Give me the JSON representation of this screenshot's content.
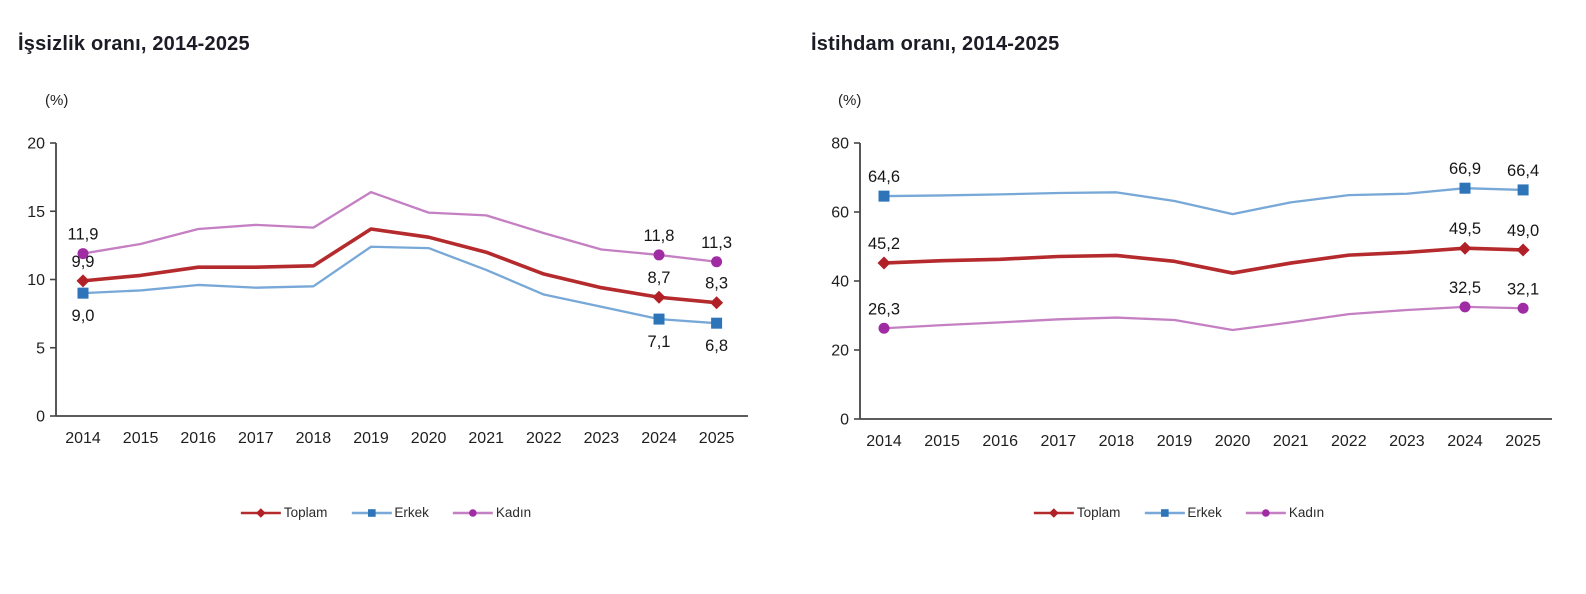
{
  "page": {
    "background": "#ffffff"
  },
  "chart_data": [
    {
      "type": "line",
      "title": "İşsizlik oranı, 2014-2025",
      "unit_label": "(%)",
      "x_labels": [
        "2014",
        "2015",
        "2016",
        "2017",
        "2018",
        "2019",
        "2020",
        "2021",
        "2022",
        "2023",
        "2024",
        "2025"
      ],
      "ylim": [
        0,
        20
      ],
      "yticks": [
        0,
        5,
        10,
        15,
        20
      ],
      "grid": false,
      "legend_position": "bottom-center",
      "axis_color": "#454545",
      "series": [
        {
          "name": "Toplam",
          "line_color": "#b52a2d",
          "marker_color": "#b02026",
          "marker": "diamond",
          "line_width": 3.6,
          "values": [
            9.9,
            10.3,
            10.9,
            10.9,
            11.0,
            13.7,
            13.1,
            12.0,
            10.4,
            9.4,
            8.7,
            8.3
          ],
          "point_labels": [
            {
              "index": 0,
              "text": "9,9",
              "position": "above"
            },
            {
              "index": 10,
              "text": "8,7",
              "position": "above"
            },
            {
              "index": 11,
              "text": "8,3",
              "position": "above"
            }
          ]
        },
        {
          "name": "Erkek",
          "line_color": "#77a8d7",
          "marker_color": "#2e74b8",
          "marker": "square",
          "line_width": 2.3,
          "values": [
            9.0,
            9.2,
            9.6,
            9.4,
            9.5,
            12.4,
            12.3,
            10.7,
            8.9,
            8.0,
            7.1,
            6.8
          ],
          "point_labels": [
            {
              "index": 0,
              "text": "9,0",
              "position": "below"
            },
            {
              "index": 10,
              "text": "7,1",
              "position": "below"
            },
            {
              "index": 11,
              "text": "6,8",
              "position": "below"
            }
          ]
        },
        {
          "name": "Kadın",
          "line_color": "#c57fc3",
          "marker_color": "#a02ca4",
          "marker": "circle",
          "line_width": 2.3,
          "values": [
            11.9,
            12.6,
            13.7,
            14.0,
            13.8,
            16.4,
            14.9,
            14.7,
            13.4,
            12.2,
            11.8,
            11.3
          ],
          "point_labels": [
            {
              "index": 0,
              "text": "11,9",
              "position": "above"
            },
            {
              "index": 10,
              "text": "11,8",
              "position": "above"
            },
            {
              "index": 11,
              "text": "11,3",
              "position": "above"
            }
          ]
        }
      ]
    },
    {
      "type": "line",
      "title": "İstihdam oranı, 2014-2025",
      "unit_label": "(%)",
      "x_labels": [
        "2014",
        "2015",
        "2016",
        "2017",
        "2018",
        "2019",
        "2020",
        "2021",
        "2022",
        "2023",
        "2024",
        "2025"
      ],
      "ylim": [
        0,
        80
      ],
      "yticks": [
        0,
        20,
        40,
        60,
        80
      ],
      "grid": false,
      "legend_position": "bottom-center",
      "axis_color": "#454545",
      "series": [
        {
          "name": "Toplam",
          "line_color": "#b52a2d",
          "marker_color": "#b02026",
          "marker": "diamond",
          "line_width": 3.6,
          "values": [
            45.2,
            45.9,
            46.3,
            47.1,
            47.4,
            45.7,
            42.3,
            45.2,
            47.5,
            48.3,
            49.5,
            49.0
          ],
          "point_labels": [
            {
              "index": 0,
              "text": "45,2",
              "position": "above"
            },
            {
              "index": 10,
              "text": "49,5",
              "position": "above"
            },
            {
              "index": 11,
              "text": "49,0",
              "position": "above"
            }
          ]
        },
        {
          "name": "Erkek",
          "line_color": "#77a8d7",
          "marker_color": "#2e74b8",
          "marker": "square",
          "line_width": 2.3,
          "values": [
            64.6,
            64.8,
            65.1,
            65.5,
            65.7,
            63.2,
            59.4,
            62.8,
            64.9,
            65.3,
            66.9,
            66.4
          ],
          "point_labels": [
            {
              "index": 0,
              "text": "64,6",
              "position": "above"
            },
            {
              "index": 10,
              "text": "66,9",
              "position": "above"
            },
            {
              "index": 11,
              "text": "66,4",
              "position": "above"
            }
          ]
        },
        {
          "name": "Kadın",
          "line_color": "#c57fc3",
          "marker_color": "#a02ca4",
          "marker": "circle",
          "line_width": 2.3,
          "values": [
            26.3,
            27.2,
            28.0,
            28.9,
            29.4,
            28.7,
            25.8,
            28.0,
            30.4,
            31.6,
            32.5,
            32.1
          ],
          "point_labels": [
            {
              "index": 0,
              "text": "26,3",
              "position": "above"
            },
            {
              "index": 10,
              "text": "32,5",
              "position": "above"
            },
            {
              "index": 11,
              "text": "32,1",
              "position": "above"
            }
          ]
        }
      ]
    }
  ]
}
